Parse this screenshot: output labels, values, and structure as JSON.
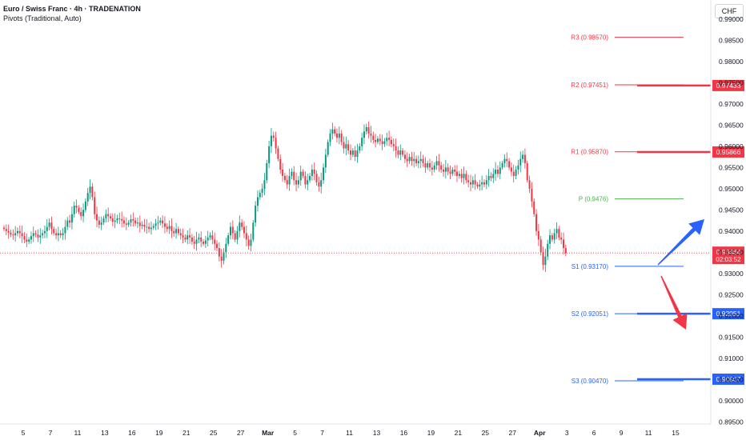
{
  "header": {
    "title": "Euro / Swiss Franc · 4h · TRADENATION",
    "indicator": "Pivots (Traditional, Auto)"
  },
  "currency": "CHF",
  "colors": {
    "up": "#089981",
    "down": "#f23645",
    "pivot_red": "#f23645",
    "pivot_green": "#4caf50",
    "pivot_blue": "#2962ff",
    "arrow_up": "#2962ff",
    "arrow_down": "#f23645"
  },
  "chart_data": {
    "type": "candlestick",
    "ylim": [
      0.8945,
      0.9945
    ],
    "y_ticks": [
      "0.99000",
      "0.98500",
      "0.98000",
      "0.97500",
      "0.97000",
      "0.96500",
      "0.96000",
      "0.95500",
      "0.95000",
      "0.94500",
      "0.94000",
      "0.93500",
      "0.93000",
      "0.92500",
      "0.92000",
      "0.91500",
      "0.91000",
      "0.90500",
      "0.90000",
      "0.89500"
    ],
    "x_ticks": [
      {
        "label": "5",
        "bar": 0
      },
      {
        "label": "7",
        "bar": 12
      },
      {
        "label": "11",
        "bar": 24
      },
      {
        "label": "13",
        "bar": 36
      },
      {
        "label": "16",
        "bar": 48
      },
      {
        "label": "19",
        "bar": 60
      },
      {
        "label": "21",
        "bar": 72
      },
      {
        "label": "25",
        "bar": 84
      },
      {
        "label": "27",
        "bar": 96
      },
      {
        "label": "Mar",
        "bar": 108
      },
      {
        "label": "5",
        "bar": 120
      },
      {
        "label": "7",
        "bar": 132
      },
      {
        "label": "11",
        "bar": 144
      },
      {
        "label": "13",
        "bar": 156
      },
      {
        "label": "16",
        "bar": 168
      },
      {
        "label": "19",
        "bar": 180
      },
      {
        "label": "21",
        "bar": 192
      },
      {
        "label": "25",
        "bar": 204
      },
      {
        "label": "27",
        "bar": 216
      },
      {
        "label": "Apr",
        "bar": 228
      },
      {
        "label": "3",
        "bar": 240
      },
      {
        "label": "6",
        "bar": 252
      },
      {
        "label": "9",
        "bar": 264
      },
      {
        "label": "11",
        "bar": 276
      },
      {
        "label": "15",
        "bar": 288
      }
    ],
    "closes": [
      0.9405,
      0.94,
      0.9396,
      0.9392,
      0.939,
      0.9395,
      0.94,
      0.9395,
      0.9388,
      0.938,
      0.9375,
      0.938,
      0.9388,
      0.9395,
      0.9392,
      0.9385,
      0.939,
      0.9395,
      0.94,
      0.941,
      0.942,
      0.9405,
      0.9395,
      0.939,
      0.9395,
      0.939,
      0.9395,
      0.941,
      0.9425,
      0.942,
      0.944,
      0.946,
      0.9455,
      0.9445,
      0.9435,
      0.945,
      0.947,
      0.949,
      0.9505,
      0.948,
      0.944,
      0.9425,
      0.9415,
      0.942,
      0.943,
      0.944,
      0.9435,
      0.943,
      0.9422,
      0.9425,
      0.943,
      0.9428,
      0.9425,
      0.9418,
      0.9415,
      0.942,
      0.9428,
      0.9425,
      0.9418,
      0.942,
      0.9412,
      0.9415,
      0.941,
      0.941,
      0.9405,
      0.9408,
      0.9412,
      0.9418,
      0.942,
      0.9425,
      0.9418,
      0.941,
      0.9405,
      0.9412,
      0.94,
      0.9395,
      0.9405,
      0.9395,
      0.939,
      0.9385,
      0.938,
      0.939,
      0.9385,
      0.9375,
      0.937,
      0.938,
      0.9385,
      0.9375,
      0.937,
      0.9378,
      0.9385,
      0.939,
      0.938,
      0.937,
      0.936,
      0.934,
      0.933,
      0.935,
      0.937,
      0.939,
      0.941,
      0.9395,
      0.938,
      0.94,
      0.942,
      0.941,
      0.9395,
      0.938,
      0.9365,
      0.938,
      0.942,
      0.946,
      0.948,
      0.949,
      0.95,
      0.952,
      0.956,
      0.96,
      0.9625,
      0.962,
      0.9595,
      0.957,
      0.9545,
      0.953,
      0.952,
      0.951,
      0.953,
      0.954,
      0.952,
      0.951,
      0.952,
      0.954,
      0.953,
      0.951,
      0.952,
      0.953,
      0.9545,
      0.9535,
      0.9515,
      0.9505,
      0.952,
      0.955,
      0.958,
      0.961,
      0.963,
      0.964,
      0.963,
      0.962,
      0.963,
      0.961,
      0.9595,
      0.9605,
      0.959,
      0.958,
      0.959,
      0.9575,
      0.959,
      0.96,
      0.962,
      0.9635,
      0.9645,
      0.963,
      0.9625,
      0.9615,
      0.961,
      0.9618,
      0.9612,
      0.9605,
      0.9612,
      0.962,
      0.9615,
      0.9605,
      0.96,
      0.959,
      0.958,
      0.959,
      0.958,
      0.957,
      0.9565,
      0.9575,
      0.9565,
      0.957,
      0.956,
      0.9565,
      0.957,
      0.956,
      0.955,
      0.956,
      0.955,
      0.9545,
      0.9555,
      0.9565,
      0.9555,
      0.9545,
      0.954,
      0.955,
      0.954,
      0.9535,
      0.9545,
      0.954,
      0.953,
      0.9535,
      0.9525,
      0.9535,
      0.952,
      0.9515,
      0.951,
      0.952,
      0.951,
      0.9505,
      0.951,
      0.9515,
      0.951,
      0.952,
      0.953,
      0.9525,
      0.9535,
      0.9545,
      0.9535,
      0.955,
      0.956,
      0.957,
      0.9565,
      0.955,
      0.954,
      0.953,
      0.9545,
      0.9555,
      0.957,
      0.958,
      0.956,
      0.952,
      0.95,
      0.947,
      0.944,
      0.94,
      0.938,
      0.935,
      0.932,
      0.934,
      0.937,
      0.939,
      0.938,
      0.9395,
      0.9405,
      0.9385,
      0.938,
      0.936,
      0.9348
    ],
    "current_price": {
      "label": "0.93484",
      "countdown": "02:03:52",
      "value": 0.93484
    },
    "pivots": [
      {
        "name": "R3",
        "label": "R3 (0.98570)",
        "value": 0.9857,
        "color": "#f23645",
        "badge": null
      },
      {
        "name": "R2",
        "label": "R2 (0.97451)",
        "value": 0.97451,
        "color": "#f23645",
        "badge": "0.97433"
      },
      {
        "name": "R1",
        "label": "R1 (0.95870)",
        "value": 0.9587,
        "color": "#f23645",
        "badge": "0.95866"
      },
      {
        "name": "P",
        "label": "P (0.9476)",
        "value": 0.9476,
        "color": "#4caf50",
        "badge": null
      },
      {
        "name": "S1",
        "label": "S1 (0.93170)",
        "value": 0.9317,
        "color": "#2962ff",
        "badge": null
      },
      {
        "name": "S2",
        "label": "S2 (0.92051)",
        "value": 0.92051,
        "color": "#2962ff",
        "badge": "0.92051"
      },
      {
        "name": "S3",
        "label": "S3 (0.90470)",
        "value": 0.9047,
        "color": "#2962ff",
        "badge": "0.90507"
      }
    ]
  }
}
